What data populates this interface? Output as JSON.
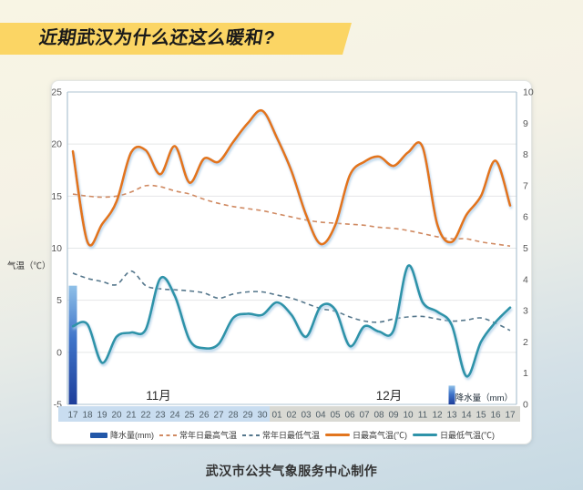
{
  "title": "近期武汉为什么还这么暖和?",
  "axis_left_title": "气温（℃）",
  "axis_right_label": "降水量（mm）",
  "footer": "武汉市公共气象服务中心制作",
  "colors": {
    "accent_yellow": "#fbd564",
    "daily_max": "#e2751e",
    "daily_min": "#2e93a9",
    "normal_max_dash": "#d08a62",
    "normal_min_dash": "#55778c",
    "bar_top": "#8fc0e8",
    "bar_mid": "#3f74c9",
    "bar_bottom": "#1e3e9a",
    "legend_bar": "#2257a8",
    "nov_band": "#c9ddf0",
    "dec_band": "#d9d9d3",
    "grid": "#e4e6e8",
    "frame": "#aec3d2",
    "tick_text": "#555555",
    "day_text": "#4f5d66",
    "month_text": "#2a2a2a"
  },
  "chart_data": {
    "type": "line+bar",
    "x_labels": [
      "17",
      "18",
      "19",
      "20",
      "21",
      "22",
      "23",
      "24",
      "25",
      "26",
      "27",
      "28",
      "29",
      "30",
      "01",
      "02",
      "03",
      "04",
      "05",
      "06",
      "07",
      "08",
      "09",
      "10",
      "11",
      "12",
      "13",
      "14",
      "15",
      "16",
      "17"
    ],
    "month_bands": [
      {
        "label": "11月",
        "from": 0,
        "to": 13
      },
      {
        "label": "12月",
        "from": 14,
        "to": 30
      }
    ],
    "left_axis": {
      "min": -5,
      "max": 25,
      "step": 5
    },
    "right_axis": {
      "min": 0,
      "max": 10,
      "step": 1
    },
    "series": [
      {
        "name": "降水量(mm)",
        "kind": "bar",
        "axis": "right",
        "values": [
          3.8,
          null,
          null,
          null,
          null,
          null,
          null,
          null,
          null,
          null,
          null,
          null,
          null,
          null,
          null,
          null,
          null,
          null,
          null,
          null,
          null,
          null,
          null,
          null,
          null,
          null,
          0.6,
          null,
          null,
          null,
          null
        ]
      },
      {
        "name": "常年日最高气温",
        "kind": "dashed",
        "axis": "left",
        "values": [
          15.2,
          15.0,
          14.9,
          15.0,
          15.4,
          16.0,
          15.9,
          15.5,
          15.2,
          14.7,
          14.3,
          14.0,
          13.8,
          13.6,
          13.3,
          13.0,
          12.7,
          12.5,
          12.4,
          12.3,
          12.2,
          12.0,
          11.9,
          11.7,
          11.4,
          11.1,
          10.9,
          10.9,
          10.6,
          10.4,
          10.2
        ]
      },
      {
        "name": "常年日最低气温",
        "kind": "dashed",
        "axis": "left",
        "values": [
          7.6,
          7.1,
          6.8,
          6.5,
          7.8,
          6.4,
          6.1,
          6.0,
          5.9,
          5.7,
          5.2,
          5.6,
          5.8,
          5.8,
          5.5,
          5.2,
          4.7,
          4.2,
          3.95,
          3.4,
          3.0,
          2.9,
          3.2,
          3.4,
          3.45,
          3.2,
          3.0,
          3.1,
          3.3,
          2.8,
          2.1
        ]
      },
      {
        "name": "日最高气温(℃)",
        "kind": "line",
        "axis": "left",
        "values": [
          19.3,
          10.6,
          12.3,
          14.5,
          19.2,
          19.4,
          17.1,
          19.8,
          16.3,
          18.6,
          18.3,
          20.2,
          22.0,
          23.2,
          20.6,
          17.4,
          13.2,
          10.4,
          12.2,
          17.0,
          18.3,
          18.8,
          17.9,
          19.2,
          19.7,
          12.3,
          10.6,
          13.2,
          15.0,
          18.4,
          14.1
        ]
      },
      {
        "name": "日最低气温(℃)",
        "kind": "line",
        "axis": "left",
        "values": [
          2.5,
          2.7,
          -1.0,
          1.5,
          1.9,
          2.2,
          7.1,
          5.4,
          1.2,
          0.4,
          0.8,
          3.3,
          3.7,
          3.6,
          4.8,
          3.6,
          1.5,
          4.4,
          4.1,
          0.6,
          2.5,
          2.0,
          2.1,
          8.3,
          4.8,
          3.9,
          2.6,
          -2.3,
          1.0,
          2.9,
          4.3
        ]
      }
    ]
  }
}
